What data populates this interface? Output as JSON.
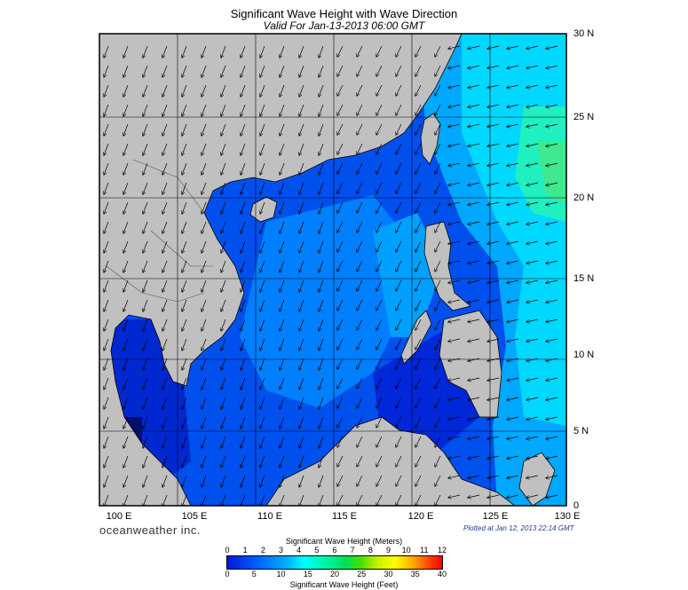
{
  "title": "Significant Wave Height with Wave Direction",
  "subtitle": "Valid For Jan-13-2013 06:00 GMT",
  "brand": "oceanweather inc.",
  "plotted": "Plotted at Jan 12, 2013 22:14 GMT",
  "lat_labels": [
    "30 N",
    "25 N",
    "20 N",
    "15 N",
    "10 N",
    "5 N",
    "0"
  ],
  "lon_labels": [
    "100 E",
    "105 E",
    "110 E",
    "115 E",
    "120 E",
    "125 E",
    "130 E"
  ],
  "colorbar": {
    "meters_title": "Significant Wave Height (Meters)",
    "feet_title": "Significant Wave Height (Feet)",
    "meters_ticks": [
      "0",
      "1",
      "2",
      "3",
      "4",
      "5",
      "6",
      "7",
      "8",
      "9",
      "10",
      "11",
      "12"
    ],
    "feet_ticks": [
      "0",
      "5",
      "10",
      "15",
      "20",
      "25",
      "30",
      "35",
      "40"
    ]
  },
  "colors": {
    "land": "#c0c0c0",
    "sea_low": "#0019d6",
    "sea_mid": "#0090ff",
    "sea_high": "#00ffff",
    "sea_peak": "#30e070"
  }
}
